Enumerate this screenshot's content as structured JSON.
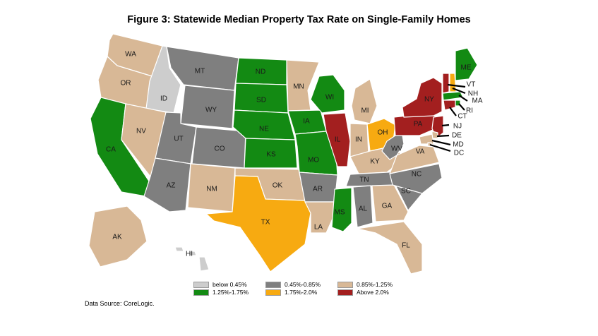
{
  "title": "Figure 3: Statewide Median Property Tax Rate on Single-Family Homes",
  "source": "Data Source: CoreLogic.",
  "colors": {
    "below_0_45": "#cdcdcd",
    "r0_45_0_85": "#7f7f7f",
    "r0_85_1_25": "#d8b896",
    "r1_25_1_75": "#138a13",
    "r1_75_2_0": "#f7aa11",
    "above_2_0": "#a31f1f"
  },
  "legend": [
    {
      "key": "below_0_45",
      "label": "below 0.45%"
    },
    {
      "key": "r0_45_0_85",
      "label": "0.45%-0.85%"
    },
    {
      "key": "r0_85_1_25",
      "label": "0.85%-1.25%"
    },
    {
      "key": "r1_25_1_75",
      "label": "1.25%-1.75%"
    },
    {
      "key": "r1_75_2_0",
      "label": "1.75%-2.0%"
    },
    {
      "key": "above_2_0",
      "label": "Above 2.0%"
    }
  ],
  "states": [
    {
      "abbr": "WA",
      "category": "r0_85_1_25"
    },
    {
      "abbr": "OR",
      "category": "r0_85_1_25"
    },
    {
      "abbr": "CA",
      "category": "r1_25_1_75"
    },
    {
      "abbr": "ID",
      "category": "below_0_45"
    },
    {
      "abbr": "NV",
      "category": "r0_85_1_25"
    },
    {
      "abbr": "MT",
      "category": "r0_45_0_85"
    },
    {
      "abbr": "WY",
      "category": "r0_45_0_85"
    },
    {
      "abbr": "UT",
      "category": "r0_45_0_85"
    },
    {
      "abbr": "CO",
      "category": "r0_45_0_85"
    },
    {
      "abbr": "AZ",
      "category": "r0_45_0_85"
    },
    {
      "abbr": "NM",
      "category": "r0_85_1_25"
    },
    {
      "abbr": "ND",
      "category": "r1_25_1_75"
    },
    {
      "abbr": "SD",
      "category": "r1_25_1_75"
    },
    {
      "abbr": "NE",
      "category": "r1_25_1_75"
    },
    {
      "abbr": "KS",
      "category": "r1_25_1_75"
    },
    {
      "abbr": "OK",
      "category": "r0_85_1_25"
    },
    {
      "abbr": "TX",
      "category": "r1_75_2_0"
    },
    {
      "abbr": "MN",
      "category": "r0_85_1_25"
    },
    {
      "abbr": "IA",
      "category": "r1_25_1_75"
    },
    {
      "abbr": "MO",
      "category": "r1_25_1_75"
    },
    {
      "abbr": "AR",
      "category": "r0_45_0_85"
    },
    {
      "abbr": "LA",
      "category": "r0_85_1_25"
    },
    {
      "abbr": "WI",
      "category": "r1_25_1_75"
    },
    {
      "abbr": "IL",
      "category": "above_2_0"
    },
    {
      "abbr": "MI",
      "category": "r0_85_1_25"
    },
    {
      "abbr": "IN",
      "category": "r0_85_1_25"
    },
    {
      "abbr": "OH",
      "category": "r1_75_2_0"
    },
    {
      "abbr": "KY",
      "category": "r0_85_1_25"
    },
    {
      "abbr": "TN",
      "category": "r0_45_0_85"
    },
    {
      "abbr": "MS",
      "category": "r1_25_1_75"
    },
    {
      "abbr": "AL",
      "category": "r0_45_0_85"
    },
    {
      "abbr": "GA",
      "category": "r0_85_1_25"
    },
    {
      "abbr": "FL",
      "category": "r0_85_1_25"
    },
    {
      "abbr": "SC",
      "category": "r0_45_0_85"
    },
    {
      "abbr": "NC",
      "category": "r0_45_0_85"
    },
    {
      "abbr": "VA",
      "category": "r0_85_1_25"
    },
    {
      "abbr": "WV",
      "category": "r0_45_0_85"
    },
    {
      "abbr": "PA",
      "category": "above_2_0"
    },
    {
      "abbr": "NY",
      "category": "above_2_0"
    },
    {
      "abbr": "NJ",
      "category": "above_2_0"
    },
    {
      "abbr": "DE",
      "category": "r0_85_1_25"
    },
    {
      "abbr": "MD",
      "category": "r0_85_1_25"
    },
    {
      "abbr": "DC",
      "category": "r0_85_1_25"
    },
    {
      "abbr": "VT",
      "category": "above_2_0"
    },
    {
      "abbr": "NH",
      "category": "r1_75_2_0"
    },
    {
      "abbr": "ME",
      "category": "r1_25_1_75"
    },
    {
      "abbr": "MA",
      "category": "r1_25_1_75"
    },
    {
      "abbr": "RI",
      "category": "r1_25_1_75"
    },
    {
      "abbr": "CT",
      "category": "above_2_0"
    },
    {
      "abbr": "AK",
      "category": "r0_85_1_25"
    },
    {
      "abbr": "HI",
      "category": "below_0_45"
    }
  ]
}
